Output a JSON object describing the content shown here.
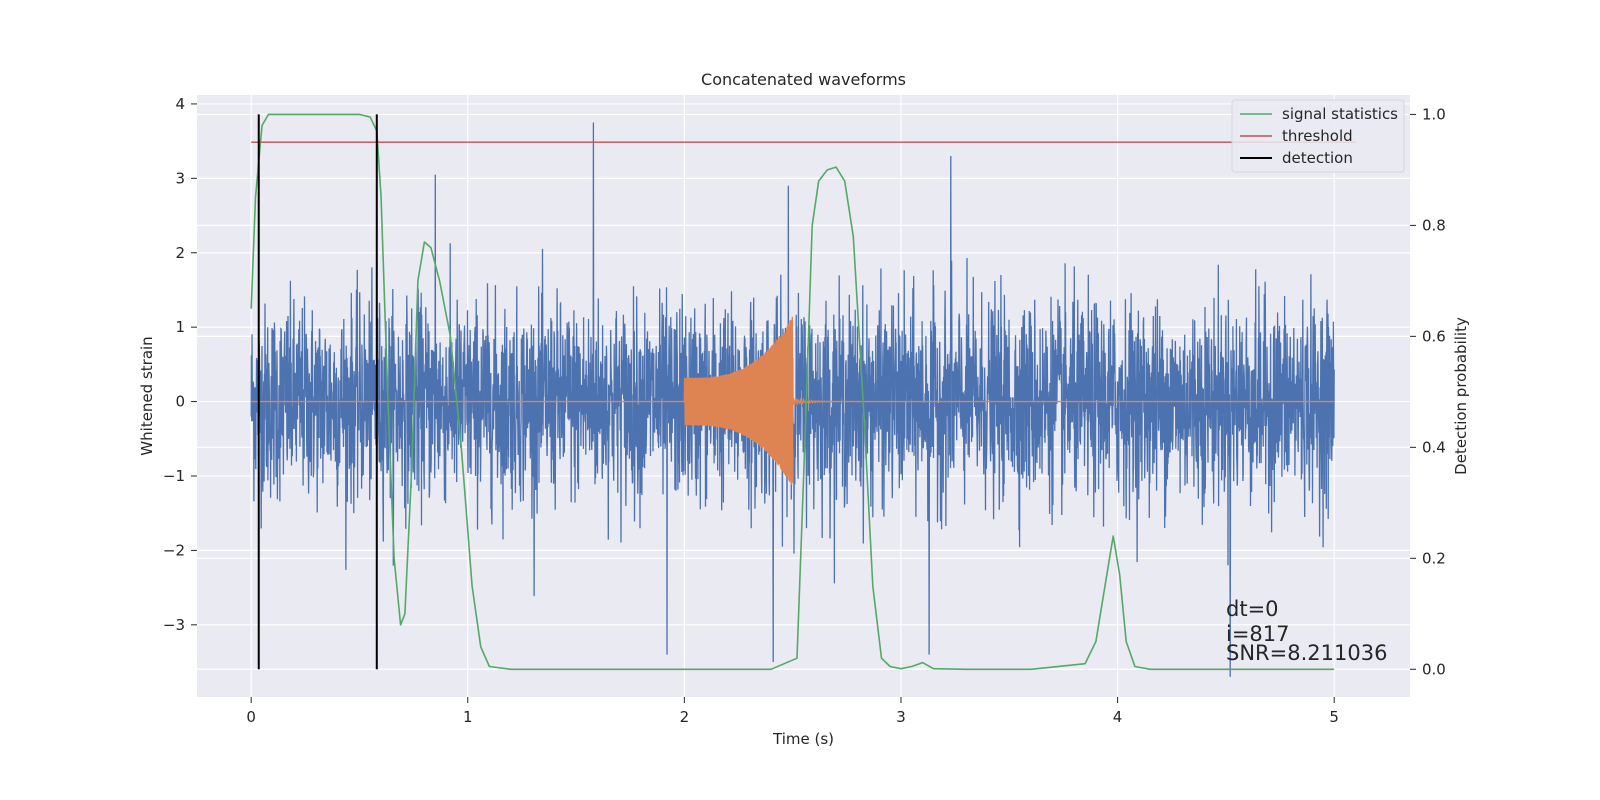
{
  "chart_data": {
    "type": "line",
    "title": "Concatenated waveforms",
    "xlabel": "Time (s)",
    "ylabel": "Whitened strain",
    "ylabel_right": "Detection probability",
    "xlim": [
      -0.25,
      5.35
    ],
    "ylim": [
      -3.97,
      4.12
    ],
    "ylim_right": [
      -0.05,
      1.035
    ],
    "x_ticks": [
      0,
      1,
      2,
      3,
      4,
      5
    ],
    "x_tick_labels": [
      "0",
      "1",
      "2",
      "3",
      "4",
      "5"
    ],
    "y_ticks": [
      -3,
      -2,
      -1,
      0,
      1,
      2,
      3,
      4
    ],
    "y_tick_labels": [
      "−3",
      "−2",
      "−1",
      "0",
      "1",
      "2",
      "3",
      "4"
    ],
    "y2_ticks": [
      0.0,
      0.2,
      0.4,
      0.6,
      0.8,
      1.0
    ],
    "y2_tick_labels": [
      "0.0",
      "0.2",
      "0.4",
      "0.6",
      "0.8",
      "1.0"
    ],
    "grid": true,
    "legend_position": "top-right",
    "series": [
      {
        "name": "",
        "kind": "noise",
        "axis": "left",
        "color": "#4c72b0",
        "x_range": [
          0,
          5
        ],
        "typical_amplitude": 0.65,
        "peaks": [
          {
            "x": 1.58,
            "y": 3.75
          },
          {
            "x": 3.23,
            "y": 3.3
          },
          {
            "x": 0.85,
            "y": 3.05
          },
          {
            "x": 2.48,
            "y": 2.9
          },
          {
            "x": 4.52,
            "y": -3.7
          },
          {
            "x": 2.41,
            "y": -3.5
          },
          {
            "x": 3.13,
            "y": -3.4
          },
          {
            "x": 1.92,
            "y": -3.4
          }
        ]
      },
      {
        "name": "",
        "kind": "chirp",
        "axis": "left",
        "color": "#dd8452",
        "x_range": [
          0,
          5
        ],
        "chirp_start": 2.0,
        "chirp_end": 2.5,
        "amplitude_start": 0.32,
        "amplitude_end": 1.15
      },
      {
        "name": "signal statistics",
        "axis": "right",
        "color": "#55a868",
        "x": [
          0.0,
          0.02,
          0.05,
          0.08,
          0.12,
          0.2,
          0.3,
          0.4,
          0.5,
          0.55,
          0.58,
          0.6,
          0.63,
          0.66,
          0.69,
          0.71,
          0.74,
          0.77,
          0.8,
          0.83,
          0.87,
          0.92,
          0.97,
          1.02,
          1.06,
          1.1,
          1.2,
          1.5,
          2.0,
          2.4,
          2.52,
          2.56,
          2.59,
          2.62,
          2.66,
          2.7,
          2.74,
          2.78,
          2.83,
          2.87,
          2.91,
          2.95,
          3.0,
          3.05,
          3.1,
          3.15,
          3.3,
          3.6,
          3.85,
          3.9,
          3.95,
          3.98,
          4.01,
          4.04,
          4.08,
          4.15,
          4.5,
          5.0
        ],
        "y": [
          0.65,
          0.85,
          0.98,
          1.0,
          1.0,
          1.0,
          1.0,
          1.0,
          1.0,
          0.995,
          0.97,
          0.85,
          0.5,
          0.2,
          0.08,
          0.1,
          0.35,
          0.7,
          0.77,
          0.76,
          0.7,
          0.6,
          0.4,
          0.15,
          0.04,
          0.005,
          0.0,
          0.0,
          0.0,
          0.0,
          0.02,
          0.45,
          0.8,
          0.88,
          0.9,
          0.905,
          0.88,
          0.78,
          0.45,
          0.15,
          0.02,
          0.005,
          0.001,
          0.005,
          0.012,
          0.001,
          0.0,
          0.0,
          0.01,
          0.05,
          0.17,
          0.24,
          0.17,
          0.05,
          0.005,
          0.0,
          0.0,
          0.0
        ]
      },
      {
        "name": "threshold",
        "axis": "right",
        "color": "#c44e52",
        "x": [
          0.0,
          5.1
        ],
        "y": [
          0.95,
          0.95
        ]
      },
      {
        "name": "detection",
        "kind": "vlines",
        "axis": "right",
        "color": "#000000",
        "x": [
          0.035,
          0.58
        ],
        "y_range": [
          0.0,
          1.0
        ]
      }
    ],
    "annotations": [
      {
        "text": "dt=0"
      },
      {
        "text": "i=817"
      },
      {
        "text": "SNR=8.211036"
      }
    ]
  }
}
